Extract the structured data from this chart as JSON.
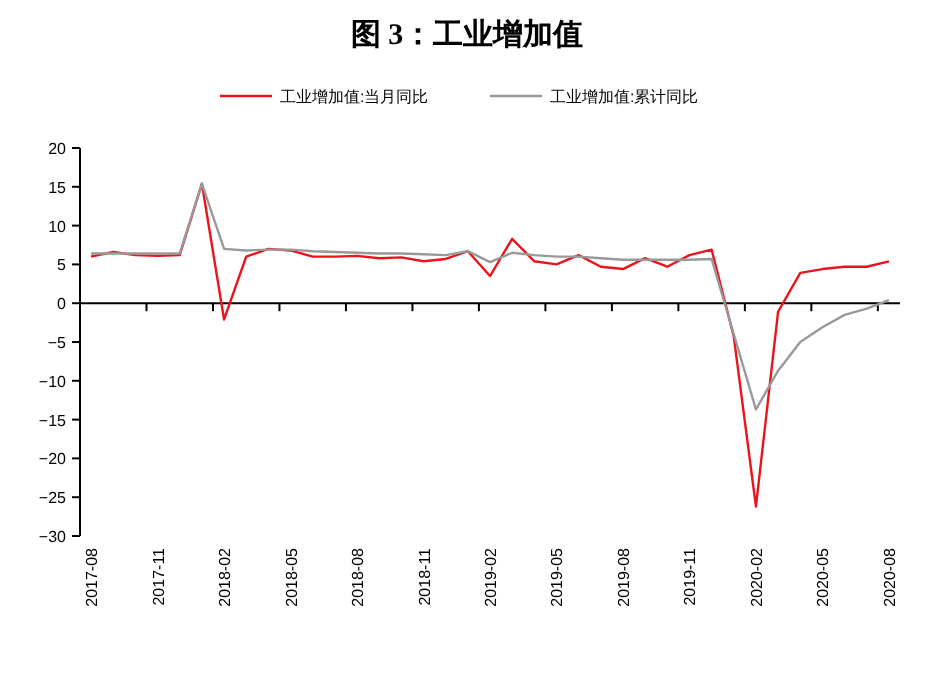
{
  "chart_data": {
    "type": "line",
    "title": "图 3：工业增加值",
    "categories": [
      "2017-08",
      null,
      null,
      "2017-11",
      null,
      null,
      "2018-02",
      null,
      null,
      "2018-05",
      null,
      null,
      "2018-08",
      null,
      null,
      "2018-11",
      null,
      null,
      "2019-02",
      null,
      null,
      "2019-05",
      null,
      null,
      "2019-08",
      null,
      null,
      "2019-11",
      null,
      null,
      "2020-02",
      null,
      null,
      "2020-05",
      null,
      null,
      "2020-08"
    ],
    "series": [
      {
        "name": "工业增加值:当月同比",
        "color": "#e8151d",
        "values": [
          6.0,
          6.6,
          6.2,
          6.1,
          6.2,
          15.4,
          -2.1,
          6.0,
          7.0,
          6.8,
          6.0,
          6.0,
          6.1,
          5.8,
          5.9,
          5.4,
          5.7,
          6.7,
          3.5,
          8.3,
          5.4,
          5.0,
          6.2,
          4.7,
          4.4,
          5.8,
          4.7,
          6.2,
          6.9,
          -4.3,
          -26.2,
          -1.1,
          3.9,
          4.4,
          4.7,
          4.7,
          5.4
        ]
      },
      {
        "name": "工业增加值:累计同比",
        "color": "#999999",
        "values": [
          6.4,
          6.4,
          6.4,
          6.4,
          6.4,
          15.4,
          7.0,
          6.8,
          6.9,
          6.9,
          6.7,
          6.6,
          6.5,
          6.4,
          6.4,
          6.3,
          6.2,
          6.7,
          5.3,
          6.5,
          6.2,
          6.0,
          6.0,
          5.8,
          5.6,
          5.6,
          5.6,
          5.6,
          5.7,
          -4.0,
          -13.7,
          -8.7,
          -5.0,
          -3.1,
          -1.5,
          -0.7,
          0.4
        ]
      }
    ],
    "ylim": [
      -30,
      20
    ],
    "yticks": [
      -30,
      -25,
      -20,
      -15,
      -10,
      -5,
      0,
      5,
      10,
      15,
      20
    ],
    "legend": "top",
    "marker": "none",
    "line_style": "solid"
  }
}
